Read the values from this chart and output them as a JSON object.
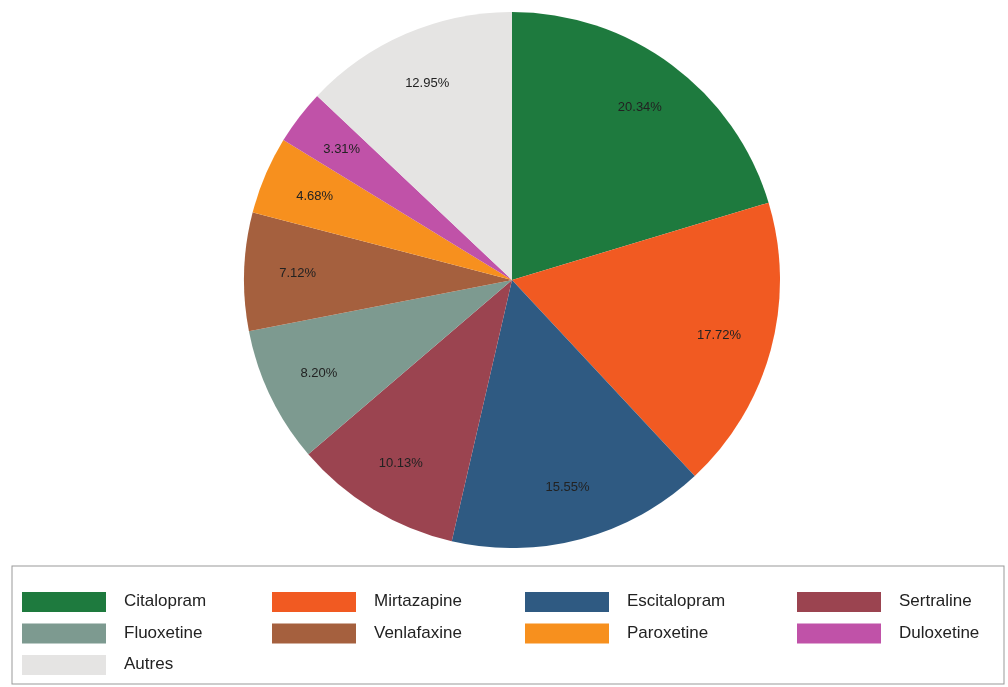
{
  "chart_data": {
    "type": "pie",
    "categories": [
      "Citalopram",
      "Mirtazapine",
      "Escitalopram",
      "Sertraline",
      "Fluoxetine",
      "Venlafaxine",
      "Paroxetine",
      "Duloxetine",
      "Autres"
    ],
    "values": [
      20.34,
      17.72,
      15.55,
      10.13,
      8.2,
      7.12,
      4.68,
      3.31,
      12.95
    ],
    "value_labels": [
      "20.34%",
      "17.72%",
      "15.55%",
      "10.13%",
      "8.20%",
      "7.12%",
      "4.68%",
      "3.31%",
      "12.95%"
    ],
    "colors": [
      "#1e7a3e",
      "#f15a22",
      "#2f5a82",
      "#9b4450",
      "#7d9a90",
      "#a5603e",
      "#f7901e",
      "#c052a8",
      "#e5e4e3"
    ],
    "legend": "bottom"
  }
}
